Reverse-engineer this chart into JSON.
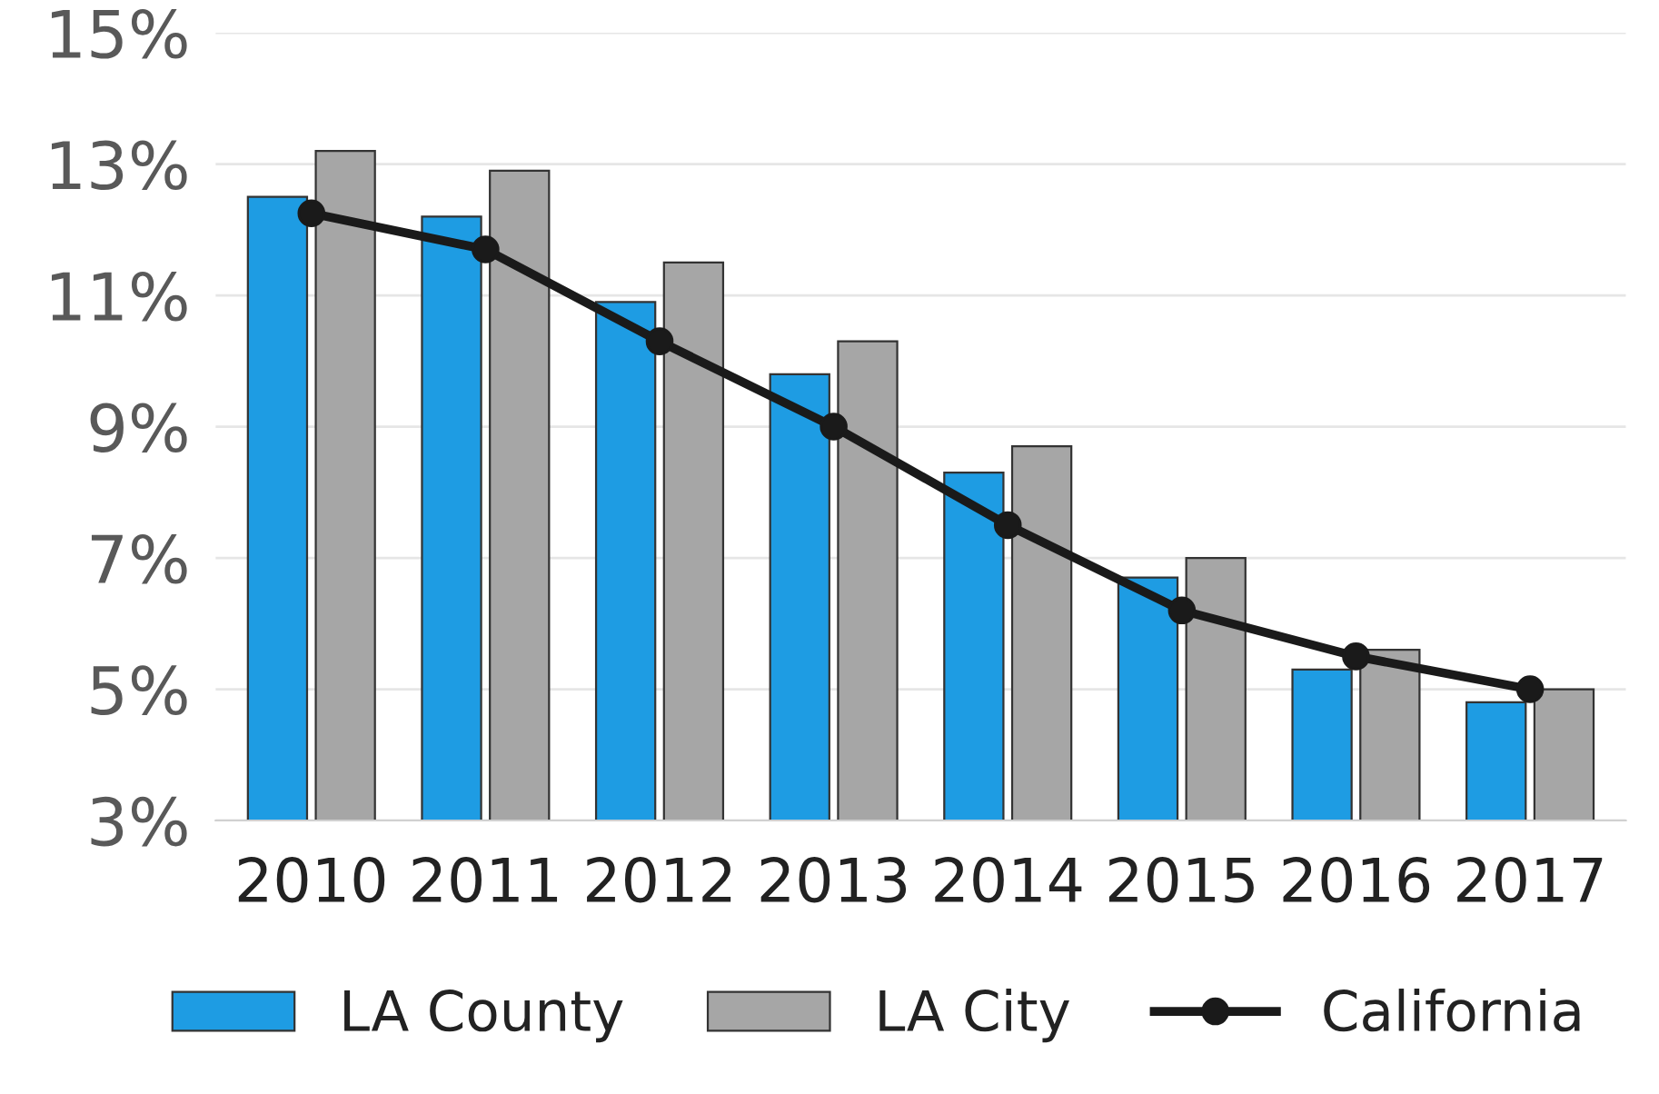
{
  "chart_data": {
    "type": "bar",
    "categories": [
      "2010",
      "2011",
      "2012",
      "2013",
      "2014",
      "2015",
      "2016",
      "2017"
    ],
    "series": [
      {
        "name": "LA County",
        "color": "#1e9ce3",
        "values": [
          12.5,
          12.2,
          10.9,
          9.8,
          8.3,
          6.7,
          5.3,
          4.8
        ]
      },
      {
        "name": "LA City",
        "color": "#a6a6a6",
        "values": [
          13.2,
          12.9,
          11.5,
          10.3,
          8.7,
          7.0,
          5.6,
          5.0
        ]
      },
      {
        "name": "California",
        "type": "line",
        "color": "#1a1a1a",
        "marker": "circle",
        "values": [
          12.25,
          11.7,
          10.3,
          9.0,
          7.5,
          6.2,
          5.5,
          5.0
        ]
      }
    ],
    "ylim": [
      3,
      15
    ],
    "yticks": [
      {
        "value": 3,
        "label": "3%"
      },
      {
        "value": 5,
        "label": "5%"
      },
      {
        "value": 7,
        "label": "7%"
      },
      {
        "value": 9,
        "label": "9%"
      },
      {
        "value": 11,
        "label": "11%"
      },
      {
        "value": 13,
        "label": "13%"
      },
      {
        "value": 15,
        "label": "15%"
      }
    ],
    "grid": "y",
    "legend": "bottom"
  }
}
